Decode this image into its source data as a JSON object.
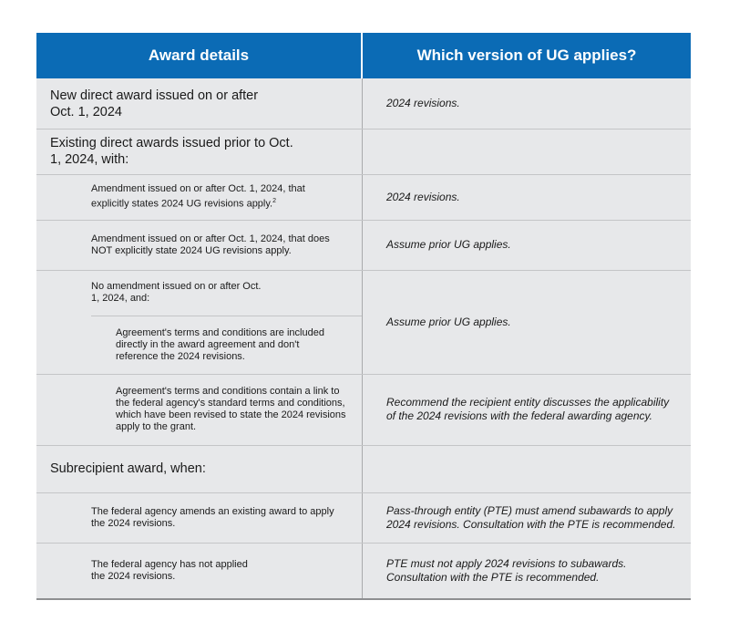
{
  "header": {
    "columns": [
      "Award details",
      "Which version of UG applies?"
    ]
  },
  "rows": [
    {
      "left": "New direct award issued on or after Oct. 1, 2024",
      "right": "2024 revisions."
    },
    {
      "left": "Existing direct awards issued prior to Oct. 1, 2024, with:"
    },
    {
      "left": "Amendment issued on or after Oct. 1, 2024, that explicitly states 2024 UG revisions apply.",
      "footnote": "2",
      "right": "2024 revisions."
    },
    {
      "left": "Amendment issued on or after Oct. 1, 2024, that does NOT explicitly state 2024 UG revisions apply.",
      "right": "Assume prior UG applies."
    },
    {
      "left": "No amendment issued on or after Oct. 1, 2024, and:",
      "right": "Assume prior UG applies."
    },
    {
      "left": "Agreement's terms and conditions are included directly in the award agreement and don't reference the 2024 revisions."
    },
    {
      "left": "Agreement's terms and conditions contain a link to the federal agency's standard terms and conditions, which have been revised to state the 2024 revisions apply to the grant.",
      "right": "Recommend the recipient entity discusses the applicability of the 2024 revisions with the federal awarding agency."
    },
    {
      "left": "Subrecipient award, when:"
    },
    {
      "left": "The federal agency amends an existing award to apply the 2024 revisions.",
      "right": "Pass-through entity (PTE) must amend subawards to apply 2024 revisions. Consultation with the PTE is recommended."
    },
    {
      "left": "The federal agency has not applied the 2024 revisions.",
      "right": "PTE must not apply 2024 revisions to subawards. Consultation with the PTE is recommended."
    }
  ]
}
